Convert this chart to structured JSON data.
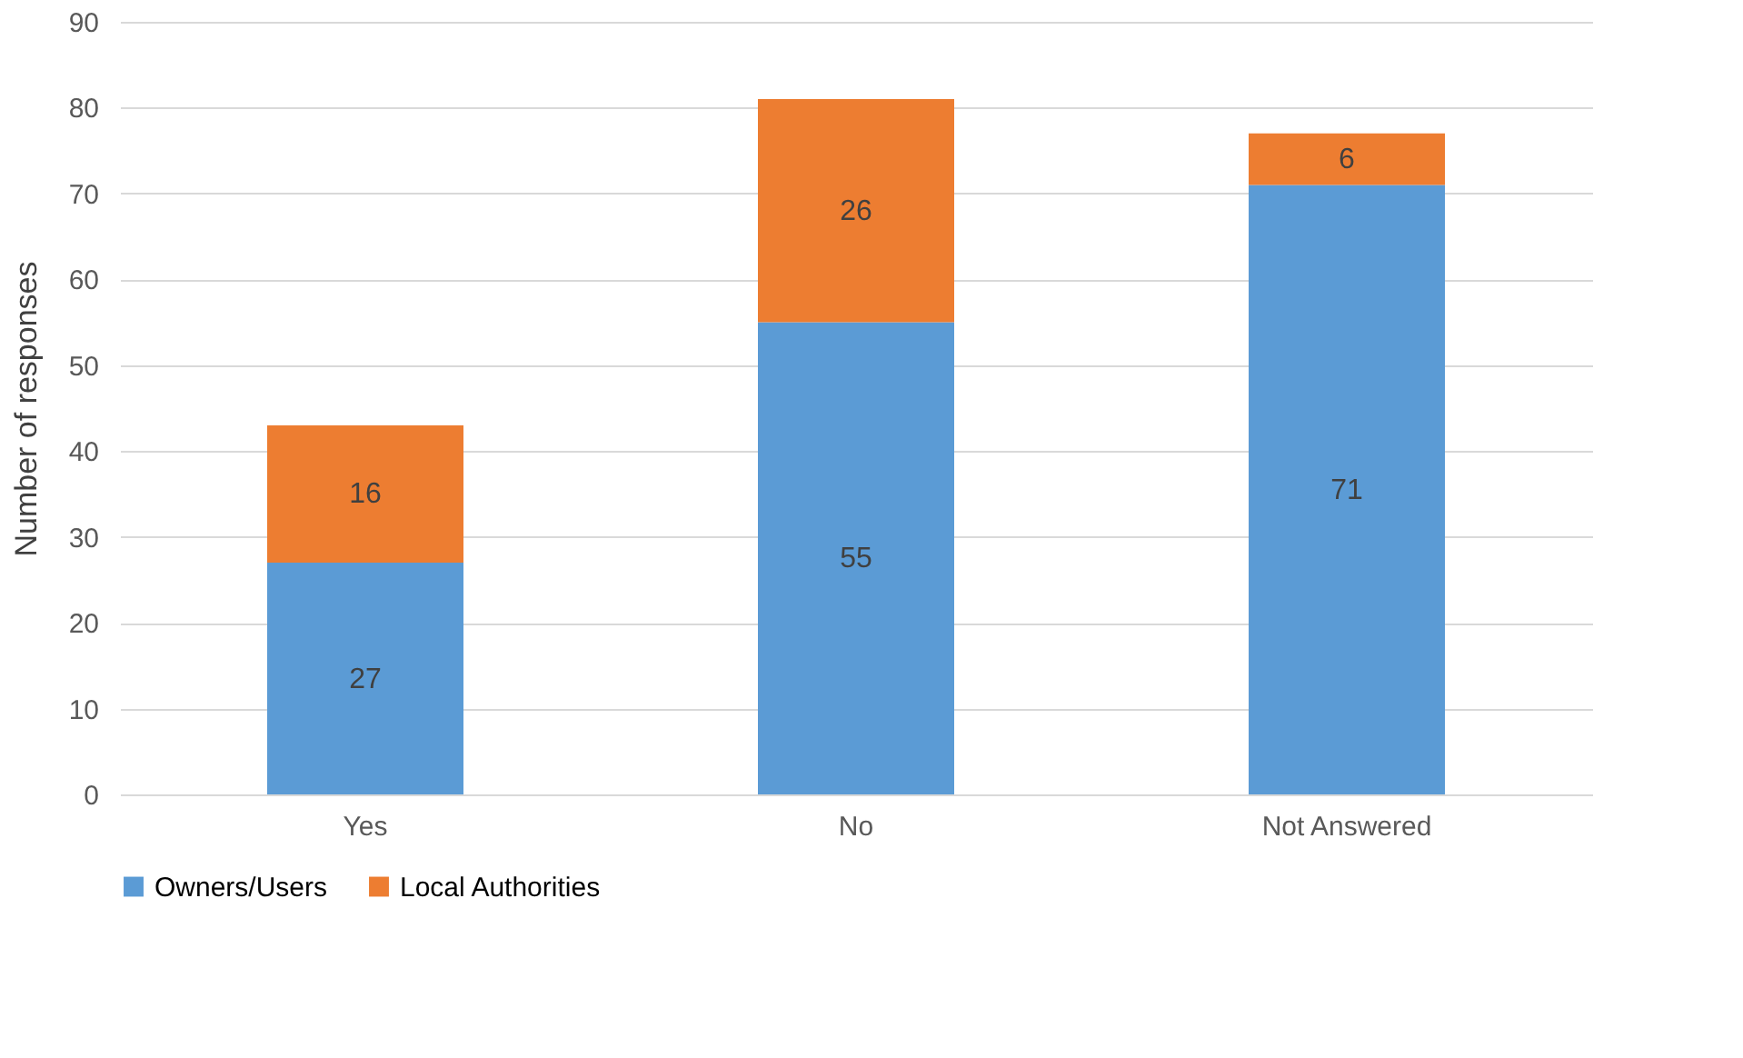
{
  "chart_data": {
    "type": "bar",
    "stacked": true,
    "ylabel": "Number of responses",
    "categories": [
      "Yes",
      "No",
      "Not Answered"
    ],
    "series": [
      {
        "name": "Owners/Users",
        "color": "#5b9bd5",
        "values": [
          27,
          55,
          71
        ]
      },
      {
        "name": "Local Authorities",
        "color": "#ed7d31",
        "values": [
          16,
          26,
          6
        ]
      }
    ],
    "ylim": [
      0,
      90
    ],
    "yticks": [
      0,
      10,
      20,
      30,
      40,
      50,
      60,
      70,
      80,
      90
    ],
    "grid": "y",
    "legend": "bottom",
    "data_labels": true
  }
}
